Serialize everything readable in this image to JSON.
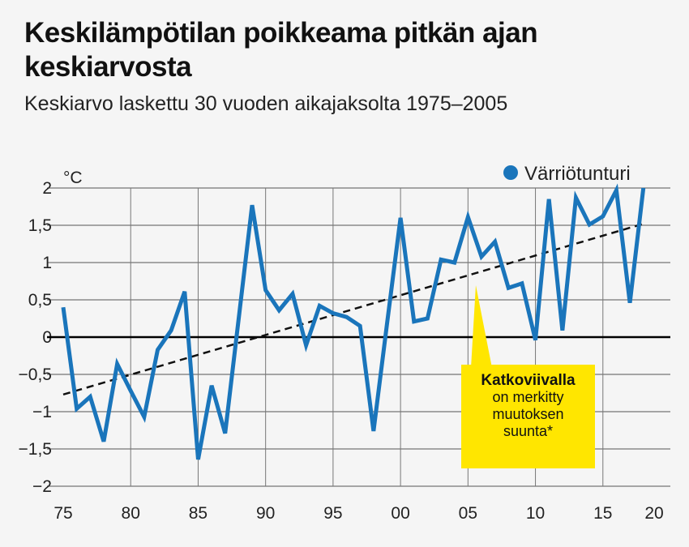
{
  "title": "Keskilämpötilan poikkeama pitkän ajan keskiarvosta",
  "subtitle": "Keskiarvo laskettu 30 vuoden aikajaksolta 1975–2005",
  "callout": {
    "bold": "Katkoviivalla",
    "text_lines": [
      "on merkitty",
      "muutoksen",
      "suunta*"
    ]
  },
  "colors": {
    "series": "#1a75bb",
    "trend": "#111111",
    "callout": "#ffe600"
  },
  "chart_data": {
    "type": "line",
    "ylabel": "°C",
    "ylim": [
      -2,
      2
    ],
    "xlim": [
      1975,
      2020
    ],
    "grid": true,
    "legend_position": "top-right",
    "y_ticks": [
      {
        "v": 2,
        "label": "2"
      },
      {
        "v": 1.5,
        "label": "1,5"
      },
      {
        "v": 1,
        "label": "1"
      },
      {
        "v": 0.5,
        "label": "0,5"
      },
      {
        "v": 0,
        "label": "0"
      },
      {
        "v": -0.5,
        "label": "−0,5"
      },
      {
        "v": -1,
        "label": "−1"
      },
      {
        "v": -1.5,
        "label": "−1,5"
      },
      {
        "v": -2,
        "label": "−2"
      }
    ],
    "x_ticks": [
      {
        "v": 1975,
        "label": "75"
      },
      {
        "v": 1980,
        "label": "80"
      },
      {
        "v": 1985,
        "label": "85"
      },
      {
        "v": 1990,
        "label": "90"
      },
      {
        "v": 1995,
        "label": "95"
      },
      {
        "v": 2000,
        "label": "00"
      },
      {
        "v": 2005,
        "label": "05"
      },
      {
        "v": 2010,
        "label": "10"
      },
      {
        "v": 2015,
        "label": "15"
      },
      {
        "v": 2020,
        "label": "20"
      }
    ],
    "series": [
      {
        "name": "Värriötunturi",
        "x": [
          1975,
          1976,
          1977,
          1978,
          1979,
          1980,
          1981,
          1982,
          1983,
          1984,
          1985,
          1986,
          1987,
          1988,
          1989,
          1990,
          1991,
          1992,
          1993,
          1994,
          1995,
          1996,
          1997,
          1998,
          1999,
          2000,
          2001,
          2002,
          2003,
          2004,
          2005,
          2006,
          2007,
          2008,
          2009,
          2010,
          2011,
          2012,
          2013,
          2014,
          2015,
          2016,
          2017,
          2018
        ],
        "values": [
          0.4,
          -0.96,
          -0.8,
          -1.4,
          -0.36,
          -0.72,
          -1.07,
          -0.17,
          0.09,
          0.61,
          -1.64,
          -0.65,
          -1.29,
          0.24,
          1.77,
          0.63,
          0.36,
          0.58,
          -0.11,
          0.42,
          0.32,
          0.27,
          0.15,
          -1.26,
          0.18,
          1.6,
          0.21,
          0.25,
          1.04,
          1.0,
          1.61,
          1.08,
          1.28,
          0.66,
          0.72,
          -0.04,
          1.85,
          0.09,
          1.87,
          1.51,
          1.62,
          1.97,
          0.46,
          2.0
        ]
      }
    ],
    "trend": {
      "x": [
        1975,
        2018
      ],
      "values": [
        -0.77,
        1.52
      ],
      "style": "dashed"
    }
  }
}
